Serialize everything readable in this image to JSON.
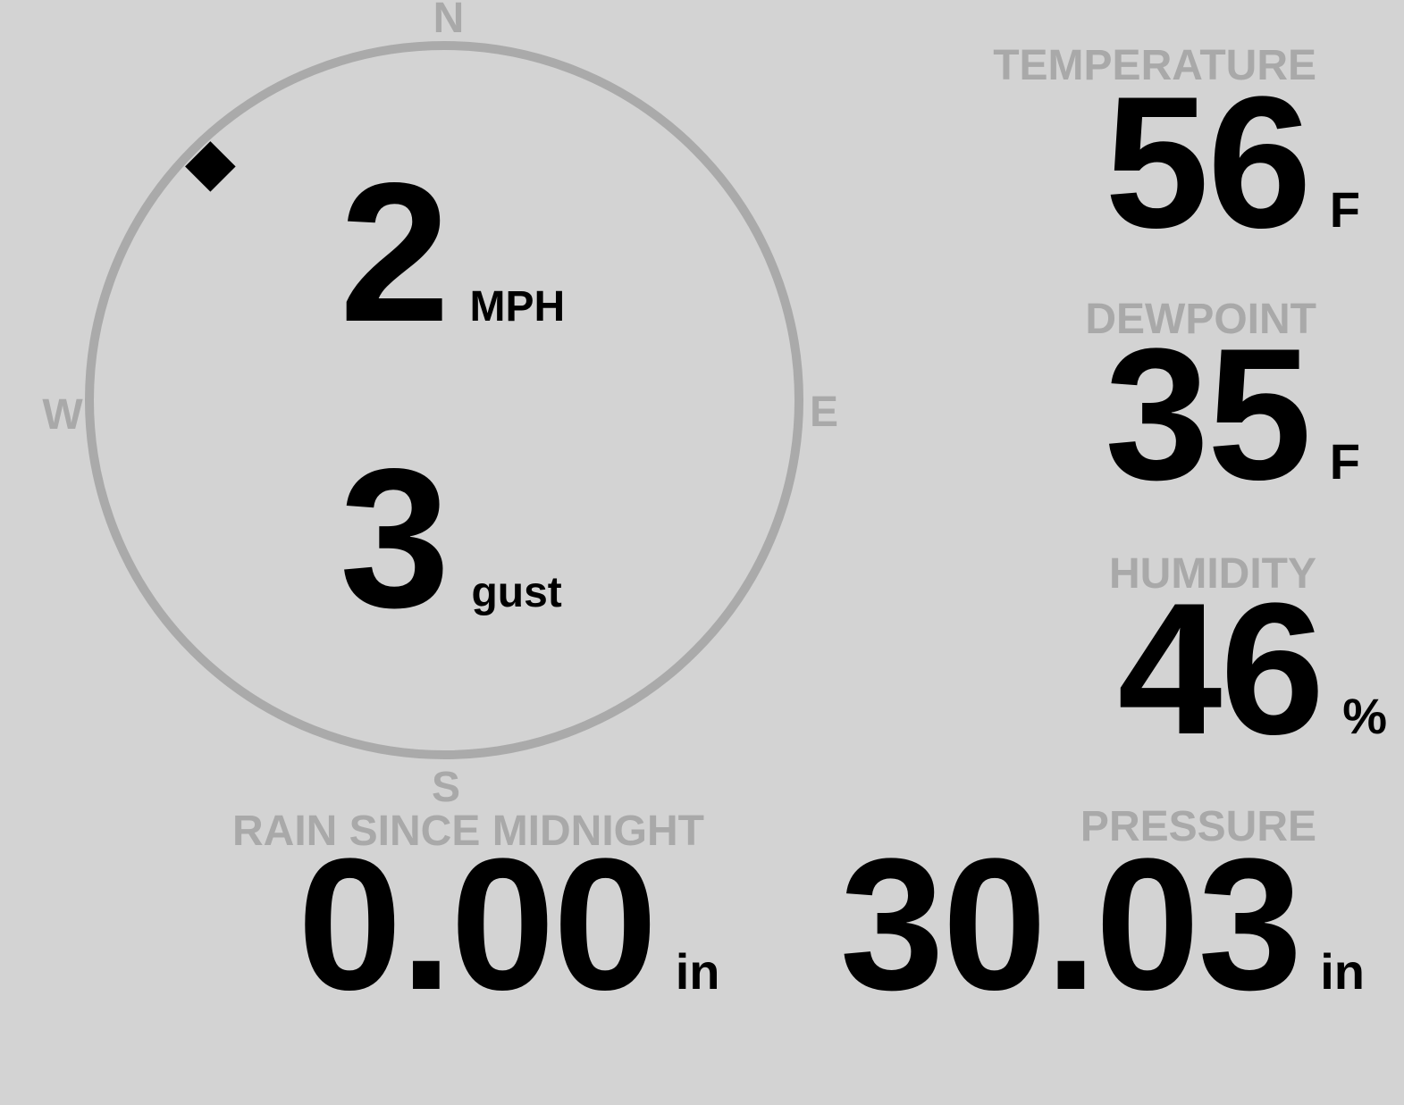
{
  "wind": {
    "speed": "2",
    "speed_unit": "MPH",
    "gust": "3",
    "gust_label": "gust",
    "direction_degrees": 315,
    "compass": {
      "n": "N",
      "e": "E",
      "s": "S",
      "w": "W"
    }
  },
  "temperature": {
    "label": "TEMPERATURE",
    "value": "56",
    "unit": "F"
  },
  "dewpoint": {
    "label": "DEWPOINT",
    "value": "35",
    "unit": "F"
  },
  "humidity": {
    "label": "HUMIDITY",
    "value": "46",
    "unit": "%"
  },
  "rain": {
    "label": "RAIN SINCE MIDNIGHT",
    "value": "0.00",
    "unit": "in"
  },
  "pressure": {
    "label": "PRESSURE",
    "value": "30.03",
    "unit": "in"
  },
  "colors": {
    "background": "#d3d3d3",
    "muted": "#a9a9a9",
    "text": "#000000"
  }
}
